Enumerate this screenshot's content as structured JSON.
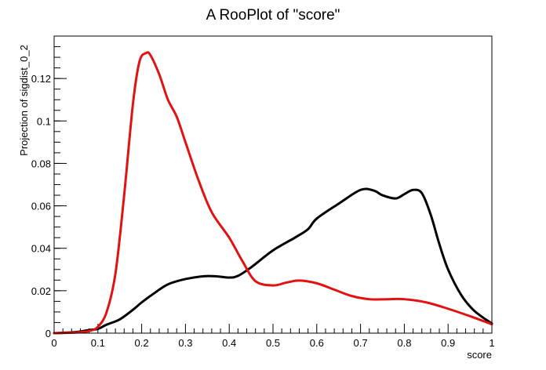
{
  "chart_data": {
    "type": "line",
    "title": "A RooPlot of \"score\"",
    "xlabel": "score",
    "ylabel": "Projection of sigdist_0_2",
    "xlim": [
      0,
      1
    ],
    "ylim": [
      0,
      0.14
    ],
    "grid": false,
    "legend": "none",
    "x_ticks": [
      0,
      0.1,
      0.2,
      0.3,
      0.4,
      0.5,
      0.6,
      0.7,
      0.8,
      0.9,
      1
    ],
    "x_tick_labels": [
      "0",
      "0.1",
      "0.2",
      "0.3",
      "0.4",
      "0.5",
      "0.6",
      "0.7",
      "0.8",
      "0.9",
      "1"
    ],
    "y_ticks": [
      0,
      0.02,
      0.04,
      0.06,
      0.08,
      0.1,
      0.12
    ],
    "y_tick_labels": [
      "0",
      "0.02",
      "0.04",
      "0.06",
      "0.08",
      "0.1",
      "0.12"
    ],
    "series": [
      {
        "color": "#000000",
        "points": [
          [
            0.0,
            0.0
          ],
          [
            0.05,
            0.0005
          ],
          [
            0.08,
            0.0015
          ],
          [
            0.1,
            0.002
          ],
          [
            0.12,
            0.004
          ],
          [
            0.15,
            0.0065
          ],
          [
            0.18,
            0.011
          ],
          [
            0.2,
            0.0145
          ],
          [
            0.23,
            0.019
          ],
          [
            0.26,
            0.023
          ],
          [
            0.3,
            0.0255
          ],
          [
            0.34,
            0.0268
          ],
          [
            0.37,
            0.0268
          ],
          [
            0.4,
            0.0262
          ],
          [
            0.42,
            0.027
          ],
          [
            0.45,
            0.031
          ],
          [
            0.5,
            0.039
          ],
          [
            0.55,
            0.045
          ],
          [
            0.58,
            0.049
          ],
          [
            0.6,
            0.054
          ],
          [
            0.65,
            0.061
          ],
          [
            0.7,
            0.0675
          ],
          [
            0.73,
            0.0672
          ],
          [
            0.75,
            0.065
          ],
          [
            0.78,
            0.0635
          ],
          [
            0.8,
            0.0655
          ],
          [
            0.82,
            0.0675
          ],
          [
            0.84,
            0.066
          ],
          [
            0.86,
            0.056
          ],
          [
            0.88,
            0.042
          ],
          [
            0.9,
            0.03
          ],
          [
            0.93,
            0.018
          ],
          [
            0.96,
            0.0105
          ],
          [
            1.0,
            0.0045
          ]
        ]
      },
      {
        "color": "#e31212",
        "points": [
          [
            0.0,
            0.0
          ],
          [
            0.05,
            0.0003
          ],
          [
            0.08,
            0.001
          ],
          [
            0.1,
            0.003
          ],
          [
            0.12,
            0.01
          ],
          [
            0.14,
            0.028
          ],
          [
            0.16,
            0.065
          ],
          [
            0.18,
            0.108
          ],
          [
            0.195,
            0.128
          ],
          [
            0.21,
            0.132
          ],
          [
            0.22,
            0.131
          ],
          [
            0.24,
            0.122
          ],
          [
            0.26,
            0.11
          ],
          [
            0.28,
            0.102
          ],
          [
            0.3,
            0.09
          ],
          [
            0.33,
            0.072
          ],
          [
            0.36,
            0.057
          ],
          [
            0.4,
            0.045
          ],
          [
            0.43,
            0.034
          ],
          [
            0.46,
            0.0245
          ],
          [
            0.5,
            0.0225
          ],
          [
            0.53,
            0.0238
          ],
          [
            0.56,
            0.0248
          ],
          [
            0.6,
            0.0235
          ],
          [
            0.64,
            0.0205
          ],
          [
            0.68,
            0.0175
          ],
          [
            0.72,
            0.016
          ],
          [
            0.76,
            0.016
          ],
          [
            0.8,
            0.016
          ],
          [
            0.85,
            0.0145
          ],
          [
            0.9,
            0.0115
          ],
          [
            0.95,
            0.008
          ],
          [
            1.0,
            0.0042
          ]
        ]
      }
    ]
  }
}
